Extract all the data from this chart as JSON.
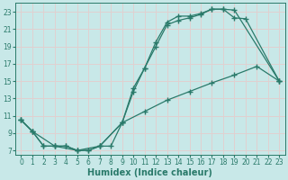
{
  "title": "",
  "xlabel": "Humidex (Indice chaleur)",
  "ylabel": "",
  "bg_color": "#c8e8e8",
  "line_color": "#2a7a6a",
  "grid_color": "#e0d0d0",
  "xlim": [
    -0.5,
    23.5
  ],
  "ylim": [
    6.5,
    24
  ],
  "xticks": [
    0,
    1,
    2,
    3,
    4,
    5,
    6,
    7,
    8,
    9,
    10,
    11,
    12,
    13,
    14,
    15,
    16,
    17,
    18,
    19,
    20,
    21,
    22,
    23
  ],
  "yticks": [
    7,
    9,
    11,
    13,
    15,
    17,
    19,
    21,
    23
  ],
  "curve1": {
    "x": [
      0,
      1,
      2,
      3,
      4,
      5,
      6,
      7,
      9,
      10,
      11,
      12,
      13,
      14,
      15,
      16,
      17,
      18,
      19,
      23
    ],
    "y": [
      10.5,
      9.2,
      7.5,
      7.5,
      7.5,
      7.0,
      7.0,
      7.5,
      10.2,
      13.8,
      16.5,
      19.0,
      21.5,
      22.0,
      22.3,
      22.7,
      23.3,
      23.3,
      23.2,
      15.0
    ]
  },
  "curve2": {
    "x": [
      0,
      1,
      2,
      3,
      4,
      5,
      6,
      7,
      8,
      9,
      10,
      11,
      12,
      13,
      14,
      15,
      16,
      17,
      18,
      19,
      20,
      23
    ],
    "y": [
      10.5,
      9.2,
      7.5,
      7.5,
      7.5,
      7.0,
      7.0,
      7.5,
      7.5,
      10.2,
      14.2,
      16.5,
      19.5,
      21.8,
      22.5,
      22.5,
      22.8,
      23.3,
      23.3,
      22.3,
      22.2,
      15.0
    ]
  },
  "curve3": {
    "x": [
      0,
      1,
      3,
      5,
      7,
      9,
      11,
      13,
      15,
      17,
      19,
      21,
      23
    ],
    "y": [
      10.5,
      9.2,
      7.5,
      7.0,
      7.5,
      10.2,
      11.5,
      12.8,
      13.8,
      14.8,
      15.7,
      16.7,
      15.0
    ]
  }
}
